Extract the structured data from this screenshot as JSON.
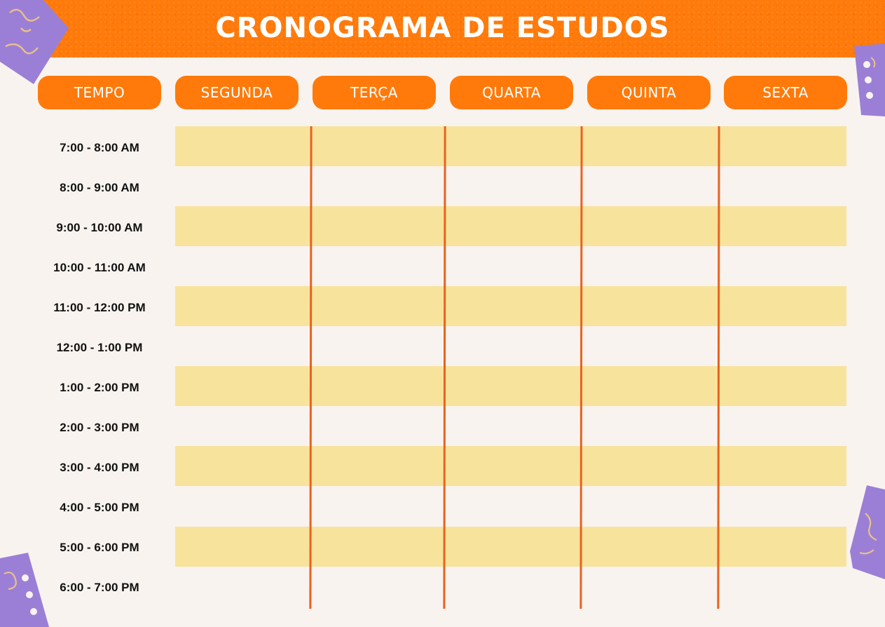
{
  "title": "CRONOGRAMA DE ESTUDOS",
  "columns": [
    "TEMPO",
    "SEGUNDA",
    "TERÇA",
    "QUARTA",
    "QUINTA",
    "SEXTA"
  ],
  "times": [
    "7:00 - 8:00 AM",
    "8:00 - 9:00 AM",
    "9:00 - 10:00 AM",
    "10:00 - 11:00 AM",
    "11:00 - 12:00 PM",
    "12:00 - 1:00 PM",
    "1:00 - 2:00 PM",
    "2:00 - 3:00 PM",
    "3:00 - 4:00 PM",
    "4:00 - 5:00 PM",
    "5:00 - 6:00 PM",
    "6:00 - 7:00 PM"
  ],
  "colors": {
    "orange": "#ff7a0a",
    "band": "#f8e39c",
    "line": "#e8621f",
    "paper": "#f8f3ef",
    "purple": "#9b7fd6"
  }
}
